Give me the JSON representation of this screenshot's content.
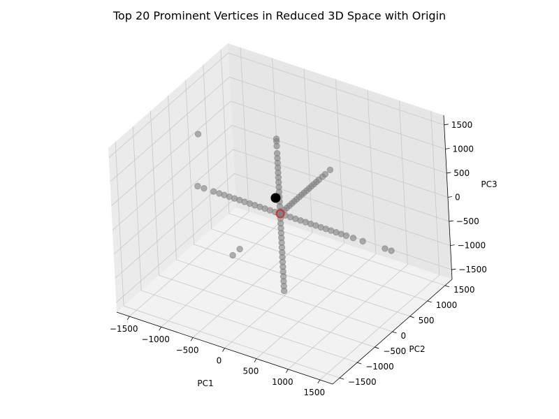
{
  "chart_data": {
    "type": "scatter",
    "title": "Top 20 Prominent Vertices in Reduced 3D Space with Origin",
    "xlabel": "PC1",
    "ylabel": "PC2",
    "zlabel": "PC3",
    "xlim": [
      -1700,
      1700
    ],
    "ylim": [
      -1700,
      1700
    ],
    "zlim": [
      -1700,
      1700
    ],
    "xticks": [
      "-1500",
      "-1000",
      "-500",
      "0",
      "500",
      "1000",
      "1500"
    ],
    "yticks": [
      "-1500",
      "-1000",
      "-500",
      "0",
      "500",
      "1000",
      "1500"
    ],
    "zticks": [
      "-1500",
      "-1000",
      "-500",
      "0",
      "500",
      "1000",
      "1500"
    ],
    "grid": true,
    "colors": {
      "vertices": "#808080",
      "origin": "#000000",
      "highlight": "#d62728",
      "pane_left": "#ebebeb",
      "pane_right": "#e6e6e6",
      "pane_floor": "#f2f2f2",
      "grid": "#c8c8c8"
    },
    "series": [
      {
        "points": [
          [
            1,
            0,
            0
          ],
          [
            80,
            0,
            0
          ],
          [
            160,
            0,
            0
          ],
          [
            240,
            0,
            0
          ],
          [
            320,
            0,
            0
          ],
          [
            400,
            0,
            0
          ],
          [
            480,
            0,
            0
          ],
          [
            560,
            0,
            0
          ],
          [
            640,
            0,
            0
          ],
          [
            720,
            0,
            0
          ],
          [
            800,
            0,
            0
          ],
          [
            880,
            0,
            0
          ],
          [
            960,
            0,
            0
          ],
          [
            1040,
            0,
            0
          ],
          [
            1150,
            0,
            0
          ],
          [
            1300,
            0,
            0
          ],
          [
            1650,
            0,
            0
          ],
          [
            1750,
            0,
            0
          ],
          [
            -80,
            0,
            0
          ],
          [
            -160,
            0,
            0
          ],
          [
            -240,
            0,
            0
          ],
          [
            -320,
            0,
            0
          ],
          [
            -400,
            0,
            0
          ],
          [
            -480,
            0,
            0
          ],
          [
            -560,
            0,
            0
          ],
          [
            -640,
            0,
            0
          ],
          [
            -720,
            0,
            0
          ],
          [
            -800,
            0,
            0
          ],
          [
            -880,
            0,
            0
          ],
          [
            -960,
            0,
            0
          ],
          [
            -1050,
            0,
            0
          ],
          [
            -1200,
            0,
            0
          ],
          [
            -1300,
            0,
            0
          ],
          [
            0,
            50,
            0
          ],
          [
            0,
            120,
            0
          ],
          [
            0,
            190,
            0
          ],
          [
            0,
            260,
            0
          ],
          [
            0,
            330,
            0
          ],
          [
            0,
            400,
            0
          ],
          [
            0,
            470,
            0
          ],
          [
            0,
            540,
            0
          ],
          [
            0,
            610,
            0
          ],
          [
            0,
            680,
            0
          ],
          [
            0,
            750,
            0
          ],
          [
            0,
            820,
            0
          ],
          [
            0,
            890,
            0
          ],
          [
            0,
            960,
            0
          ],
          [
            0,
            1030,
            0
          ],
          [
            0,
            1100,
            0
          ],
          [
            0,
            1200,
            0
          ],
          [
            0,
            1280,
            0
          ],
          [
            0,
            1420,
            0
          ],
          [
            0,
            -1150,
            0
          ],
          [
            0,
            -1350,
            0
          ],
          [
            0,
            0,
            50
          ],
          [
            0,
            0,
            150
          ],
          [
            0,
            0,
            250
          ],
          [
            0,
            0,
            350
          ],
          [
            0,
            0,
            450
          ],
          [
            0,
            0,
            550
          ],
          [
            0,
            0,
            650
          ],
          [
            0,
            0,
            750
          ],
          [
            0,
            0,
            850
          ],
          [
            0,
            0,
            950
          ],
          [
            0,
            0,
            1050
          ],
          [
            0,
            0,
            1150
          ],
          [
            0,
            0,
            1250
          ],
          [
            0,
            0,
            1400
          ],
          [
            0,
            0,
            1500
          ],
          [
            0,
            0,
            1550
          ],
          [
            0,
            0,
            -100
          ],
          [
            0,
            0,
            -200
          ],
          [
            0,
            0,
            -300
          ],
          [
            0,
            0,
            -400
          ],
          [
            0,
            0,
            -500
          ],
          [
            0,
            0,
            -600
          ],
          [
            0,
            0,
            -700
          ],
          [
            0,
            0,
            -800
          ],
          [
            0,
            0,
            -900
          ],
          [
            0,
            0,
            -1000
          ],
          [
            0,
            0,
            -1100
          ],
          [
            0,
            0,
            -1200
          ],
          [
            0,
            0,
            -1300
          ],
          [
            0,
            0,
            -1400
          ],
          [
            0,
            0,
            -1500
          ],
          [
            0,
            0,
            -1600
          ],
          [
            -1250,
            0,
            1100
          ]
        ]
      },
      {
        "points": [
          [
            0,
            0,
            0
          ]
        ]
      },
      {
        "points": [
          [
            1,
            0,
            0
          ]
        ]
      }
    ]
  }
}
